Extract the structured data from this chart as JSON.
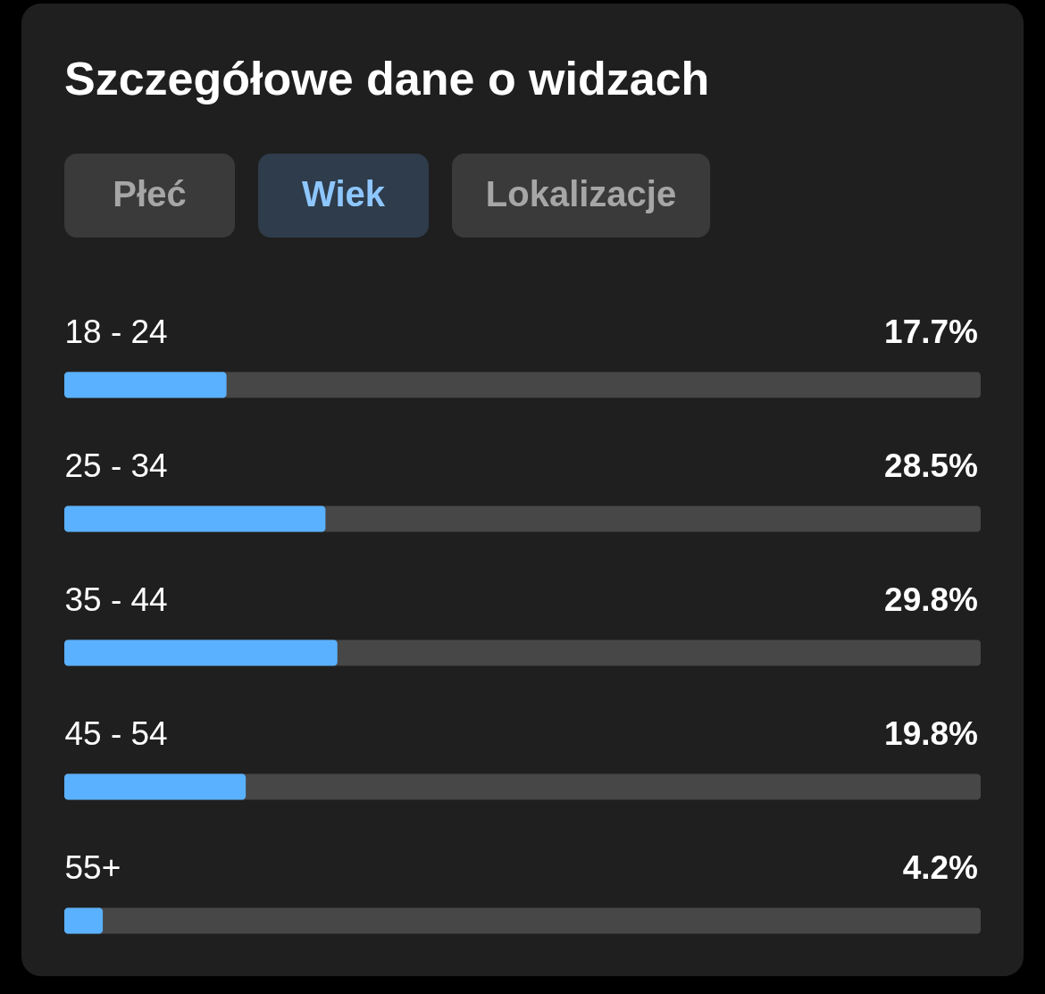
{
  "chart_data": {
    "type": "bar",
    "orientation": "horizontal",
    "title": "Szczegółowe dane o widzach",
    "annotations": [
      "Płeć",
      "Wiek",
      "Lokalizacje"
    ],
    "categories": [
      "18 - 24",
      "25 - 34",
      "35 - 44",
      "45 - 54",
      "55+"
    ],
    "values": [
      17.7,
      28.5,
      29.8,
      19.8,
      4.2
    ],
    "value_labels": [
      "17.7%",
      "28.5%",
      "29.8%",
      "19.8%",
      "4.2%"
    ],
    "color": "#5ab1ff",
    "xlim": [
      0,
      100
    ],
    "grid": false,
    "tick_labels": "y"
  }
}
